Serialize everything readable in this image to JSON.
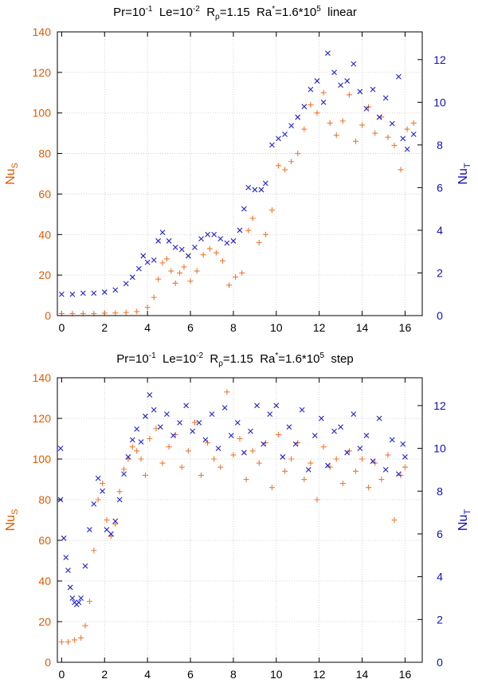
{
  "chart_data": [
    {
      "type": "scatter",
      "title": {
        "pr": "Pr=10",
        "pr_exp": "-1",
        "le": "Le=10",
        "le_exp": "-2",
        "r": "R",
        "r_sub": "ρ",
        "r_val": "=1.15",
        "ra": "Ra",
        "ra_sup": "*",
        "ra_mid": "=1.6*10",
        "ra_exp": "5",
        "mode": "linear"
      },
      "xlim": [
        -0.2,
        16.8
      ],
      "ylim_left": [
        0,
        140
      ],
      "ylim_right": [
        0,
        13.3
      ],
      "xticks": [
        "0",
        "2",
        "4",
        "6",
        "8",
        "10",
        "12",
        "14",
        "16"
      ],
      "yticks_left": [
        "0",
        "20",
        "40",
        "60",
        "80",
        "100",
        "120",
        "140"
      ],
      "yticks_right": [
        "0",
        "2",
        "4",
        "6",
        "8",
        "10",
        "12"
      ],
      "ylabel_left": {
        "base": "Nu",
        "sub": "S"
      },
      "ylabel_right": {
        "base": "Nu",
        "sub": "T"
      },
      "colors": {
        "nus": "#f07830",
        "nut": "#2020c8"
      },
      "series": [
        {
          "name": "NuS",
          "axis": "left",
          "marker": "+",
          "points": [
            [
              0.0,
              1.0
            ],
            [
              0.5,
              1.0
            ],
            [
              1.0,
              1.0
            ],
            [
              1.5,
              1.0
            ],
            [
              2.0,
              1.2
            ],
            [
              2.5,
              1.3
            ],
            [
              3.0,
              1.5
            ],
            [
              3.5,
              2.0
            ],
            [
              4.0,
              4.0
            ],
            [
              4.3,
              9.0
            ],
            [
              4.5,
              18.0
            ],
            [
              4.7,
              26.0
            ],
            [
              4.9,
              28.0
            ],
            [
              5.1,
              22.0
            ],
            [
              5.3,
              16.0
            ],
            [
              5.5,
              21.0
            ],
            [
              5.7,
              24.0
            ],
            [
              6.0,
              17.0
            ],
            [
              6.3,
              22.0
            ],
            [
              6.6,
              30.0
            ],
            [
              6.9,
              33.0
            ],
            [
              7.2,
              31.0
            ],
            [
              7.5,
              27.0
            ],
            [
              7.8,
              15.0
            ],
            [
              8.1,
              19.0
            ],
            [
              8.4,
              21.0
            ],
            [
              8.7,
              42.0
            ],
            [
              8.9,
              48.0
            ],
            [
              9.2,
              36.0
            ],
            [
              9.5,
              40.0
            ],
            [
              9.8,
              52.0
            ],
            [
              10.1,
              74.0
            ],
            [
              10.4,
              72.0
            ],
            [
              10.7,
              76.0
            ],
            [
              11.0,
              80.0
            ],
            [
              11.3,
              92.0
            ],
            [
              11.6,
              104.0
            ],
            [
              11.9,
              100.0
            ],
            [
              12.2,
              110.0
            ],
            [
              12.5,
              95.0
            ],
            [
              12.8,
              89.0
            ],
            [
              13.1,
              96.0
            ],
            [
              13.4,
              109.0
            ],
            [
              13.7,
              86.0
            ],
            [
              14.0,
              94.0
            ],
            [
              14.3,
              103.0
            ],
            [
              14.6,
              90.0
            ],
            [
              14.9,
              98.0
            ],
            [
              15.2,
              88.0
            ],
            [
              15.5,
              84.0
            ],
            [
              15.8,
              72.0
            ],
            [
              16.1,
              92.0
            ],
            [
              16.4,
              95.0
            ]
          ]
        },
        {
          "name": "NuT",
          "axis": "right",
          "marker": "x",
          "points": [
            [
              0.0,
              1.0
            ],
            [
              0.5,
              1.0
            ],
            [
              1.0,
              1.05
            ],
            [
              1.5,
              1.05
            ],
            [
              2.0,
              1.1
            ],
            [
              2.5,
              1.2
            ],
            [
              3.0,
              1.5
            ],
            [
              3.3,
              1.8
            ],
            [
              3.6,
              2.2
            ],
            [
              3.8,
              2.8
            ],
            [
              4.0,
              2.5
            ],
            [
              4.3,
              2.6
            ],
            [
              4.5,
              3.5
            ],
            [
              4.7,
              3.9
            ],
            [
              5.0,
              3.5
            ],
            [
              5.3,
              3.2
            ],
            [
              5.6,
              3.1
            ],
            [
              5.9,
              2.8
            ],
            [
              6.2,
              3.2
            ],
            [
              6.5,
              3.6
            ],
            [
              6.8,
              3.8
            ],
            [
              7.1,
              3.8
            ],
            [
              7.4,
              3.6
            ],
            [
              7.7,
              3.4
            ],
            [
              8.0,
              3.5
            ],
            [
              8.3,
              4.0
            ],
            [
              8.5,
              5.0
            ],
            [
              8.7,
              6.0
            ],
            [
              9.0,
              5.9
            ],
            [
              9.3,
              5.9
            ],
            [
              9.5,
              6.2
            ],
            [
              9.8,
              8.0
            ],
            [
              10.1,
              8.3
            ],
            [
              10.4,
              8.5
            ],
            [
              10.7,
              8.9
            ],
            [
              11.0,
              9.3
            ],
            [
              11.3,
              9.8
            ],
            [
              11.6,
              10.6
            ],
            [
              11.9,
              11.0
            ],
            [
              12.2,
              10.0
            ],
            [
              12.4,
              12.3
            ],
            [
              12.7,
              11.4
            ],
            [
              13.0,
              10.8
            ],
            [
              13.3,
              11.0
            ],
            [
              13.6,
              11.8
            ],
            [
              13.9,
              10.5
            ],
            [
              14.2,
              9.7
            ],
            [
              14.5,
              10.6
            ],
            [
              14.8,
              9.3
            ],
            [
              15.1,
              10.2
            ],
            [
              15.4,
              9.0
            ],
            [
              15.7,
              11.2
            ],
            [
              15.9,
              8.3
            ],
            [
              16.1,
              7.8
            ],
            [
              16.4,
              8.5
            ]
          ]
        }
      ]
    },
    {
      "type": "scatter",
      "title": {
        "pr": "Pr=10",
        "pr_exp": "-1",
        "le": "Le=10",
        "le_exp": "-2",
        "r": "R",
        "r_sub": "ρ",
        "r_val": "=1.15",
        "ra": "Ra",
        "ra_sup": "*",
        "ra_mid": "=1.6*10",
        "ra_exp": "5",
        "mode": "step"
      },
      "xlim": [
        -0.2,
        16.8
      ],
      "ylim_left": [
        0,
        140
      ],
      "ylim_right": [
        0,
        13.3
      ],
      "xticks": [
        "0",
        "2",
        "4",
        "6",
        "8",
        "10",
        "12",
        "14",
        "16"
      ],
      "yticks_left": [
        "0",
        "20",
        "40",
        "60",
        "80",
        "100",
        "120",
        "140"
      ],
      "yticks_right": [
        "0",
        "2",
        "4",
        "6",
        "8",
        "10",
        "12"
      ],
      "ylabel_left": {
        "base": "Nu",
        "sub": "S"
      },
      "ylabel_right": {
        "base": "Nu",
        "sub": "T"
      },
      "colors": {
        "nus": "#f07830",
        "nut": "#2020c8"
      },
      "series": [
        {
          "name": "NuS",
          "axis": "left",
          "marker": "+",
          "points": [
            [
              0.0,
              10.0
            ],
            [
              0.3,
              10.0
            ],
            [
              0.6,
              11.0
            ],
            [
              0.9,
              12.0
            ],
            [
              1.1,
              18.0
            ],
            [
              1.3,
              30.0
            ],
            [
              1.5,
              55.0
            ],
            [
              1.7,
              80.0
            ],
            [
              1.9,
              88.0
            ],
            [
              2.1,
              70.0
            ],
            [
              2.3,
              62.0
            ],
            [
              2.5,
              68.0
            ],
            [
              2.7,
              84.0
            ],
            [
              2.9,
              95.0
            ],
            [
              3.1,
              100.0
            ],
            [
              3.3,
              106.0
            ],
            [
              3.5,
              104.0
            ],
            [
              3.7,
              100.0
            ],
            [
              3.9,
              92.0
            ],
            [
              4.1,
              110.0
            ],
            [
              4.4,
              115.0
            ],
            [
              4.7,
              98.0
            ],
            [
              5.0,
              106.0
            ],
            [
              5.3,
              112.0
            ],
            [
              5.6,
              96.0
            ],
            [
              5.9,
              104.0
            ],
            [
              6.2,
              118.0
            ],
            [
              6.5,
              92.0
            ],
            [
              6.8,
              108.0
            ],
            [
              7.1,
              100.0
            ],
            [
              7.4,
              96.0
            ],
            [
              7.7,
              133.0
            ],
            [
              8.0,
              102.0
            ],
            [
              8.3,
              110.0
            ],
            [
              8.6,
              90.0
            ],
            [
              8.9,
              104.0
            ],
            [
              9.2,
              98.0
            ],
            [
              9.5,
              108.0
            ],
            [
              9.8,
              86.0
            ],
            [
              10.1,
              112.0
            ],
            [
              10.4,
              94.0
            ],
            [
              10.7,
              100.0
            ],
            [
              11.0,
              108.0
            ],
            [
              11.3,
              90.0
            ],
            [
              11.6,
              98.0
            ],
            [
              11.9,
              80.0
            ],
            [
              12.2,
              106.0
            ],
            [
              12.5,
              96.0
            ],
            [
              12.8,
              100.0
            ],
            [
              13.1,
              88.0
            ],
            [
              13.4,
              104.0
            ],
            [
              13.7,
              94.0
            ],
            [
              14.0,
              100.0
            ],
            [
              14.3,
              86.0
            ],
            [
              14.6,
              98.0
            ],
            [
              14.9,
              90.0
            ],
            [
              15.2,
              102.0
            ],
            [
              15.5,
              70.0
            ],
            [
              15.8,
              92.0
            ],
            [
              16.0,
              96.0
            ]
          ]
        },
        {
          "name": "NuT",
          "axis": "right",
          "marker": "x",
          "points": [
            [
              -0.05,
              10.0
            ],
            [
              -0.05,
              7.6
            ],
            [
              0.1,
              5.8
            ],
            [
              0.2,
              4.9
            ],
            [
              0.3,
              4.3
            ],
            [
              0.4,
              3.5
            ],
            [
              0.5,
              3.0
            ],
            [
              0.6,
              2.8
            ],
            [
              0.7,
              2.7
            ],
            [
              0.8,
              2.8
            ],
            [
              0.9,
              3.0
            ],
            [
              1.1,
              4.5
            ],
            [
              1.3,
              6.2
            ],
            [
              1.5,
              7.4
            ],
            [
              1.7,
              8.6
            ],
            [
              1.9,
              8.0
            ],
            [
              2.1,
              6.2
            ],
            [
              2.3,
              6.0
            ],
            [
              2.5,
              6.6
            ],
            [
              2.7,
              7.6
            ],
            [
              2.9,
              8.8
            ],
            [
              3.1,
              9.6
            ],
            [
              3.3,
              10.4
            ],
            [
              3.5,
              10.9
            ],
            [
              3.7,
              10.3
            ],
            [
              3.9,
              11.5
            ],
            [
              4.1,
              12.5
            ],
            [
              4.3,
              11.8
            ],
            [
              4.6,
              11.0
            ],
            [
              4.9,
              11.6
            ],
            [
              5.2,
              10.6
            ],
            [
              5.5,
              11.2
            ],
            [
              5.8,
              12.0
            ],
            [
              6.1,
              10.8
            ],
            [
              6.4,
              11.2
            ],
            [
              6.7,
              10.4
            ],
            [
              7.0,
              11.6
            ],
            [
              7.3,
              10.0
            ],
            [
              7.6,
              11.9
            ],
            [
              7.9,
              10.6
            ],
            [
              8.2,
              11.2
            ],
            [
              8.5,
              9.8
            ],
            [
              8.8,
              10.8
            ],
            [
              9.1,
              12.0
            ],
            [
              9.4,
              10.2
            ],
            [
              9.7,
              11.6
            ],
            [
              10.0,
              12.0
            ],
            [
              10.3,
              9.6
            ],
            [
              10.6,
              11.0
            ],
            [
              10.9,
              10.2
            ],
            [
              11.2,
              11.8
            ],
            [
              11.5,
              9.0
            ],
            [
              11.8,
              10.6
            ],
            [
              12.1,
              11.4
            ],
            [
              12.4,
              9.2
            ],
            [
              12.7,
              10.8
            ],
            [
              13.0,
              11.0
            ],
            [
              13.3,
              9.8
            ],
            [
              13.6,
              11.6
            ],
            [
              13.9,
              10.0
            ],
            [
              14.2,
              10.6
            ],
            [
              14.5,
              9.4
            ],
            [
              14.8,
              11.4
            ],
            [
              15.1,
              9.0
            ],
            [
              15.4,
              10.4
            ],
            [
              15.7,
              8.8
            ],
            [
              15.9,
              10.2
            ],
            [
              16.0,
              9.6
            ]
          ]
        }
      ]
    }
  ]
}
